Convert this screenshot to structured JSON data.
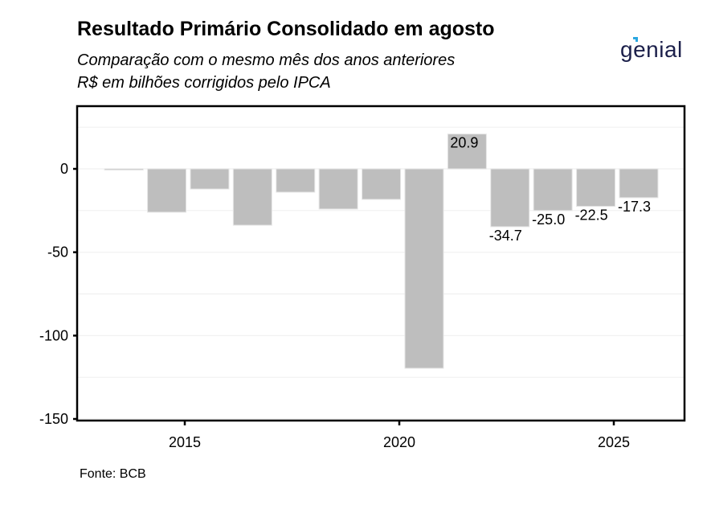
{
  "chart_data": {
    "type": "bar",
    "title": "Resultado Primário Consolidado em agosto",
    "subtitle_lines": [
      "Comparação com o mesmo mês dos anos anteriores",
      "R$ em bilhões corrigidos pelo IPCA"
    ],
    "caption": "Fonte: BCB",
    "logo_text": "genial",
    "xlabel": "",
    "ylabel": "",
    "categories": [
      "2013-08",
      "2014-08",
      "2015-08",
      "2016-08",
      "2017-08",
      "2018-08",
      "2019-08",
      "2020-08",
      "2021-08",
      "2022-08",
      "2023-08",
      "2024-08",
      "2025-08"
    ],
    "x": [
      2013.58,
      2014.58,
      2015.58,
      2016.58,
      2017.58,
      2018.58,
      2019.58,
      2020.58,
      2021.58,
      2022.58,
      2023.58,
      2024.58,
      2025.58
    ],
    "values": [
      -0.6,
      -26.0,
      -12.1,
      -33.8,
      -14.0,
      -24.1,
      -18.3,
      -119.6,
      20.9,
      -34.7,
      -25.0,
      -22.5,
      -17.3
    ],
    "data_labels": [
      null,
      null,
      null,
      null,
      null,
      null,
      null,
      null,
      "20.9",
      "-34.7",
      "-25.0",
      "-22.5",
      "-17.3"
    ],
    "ylim": [
      -150,
      35
    ],
    "xlim": [
      2012.4,
      2026.6
    ],
    "yticks": [
      0,
      -50,
      -100,
      -150
    ],
    "ytick_labels": [
      "0",
      "-50",
      "-100",
      "-150"
    ],
    "xticks": [
      2015,
      2020,
      2025
    ],
    "xtick_labels": [
      "2015",
      "2020",
      "2025"
    ],
    "minor_gridlines_y": [
      25,
      -25,
      -75,
      -125
    ],
    "grid": true,
    "bar_color": "#bebebe",
    "bar_edge_color": "#e6e6e6",
    "grid_color": "#f0f0f0"
  }
}
